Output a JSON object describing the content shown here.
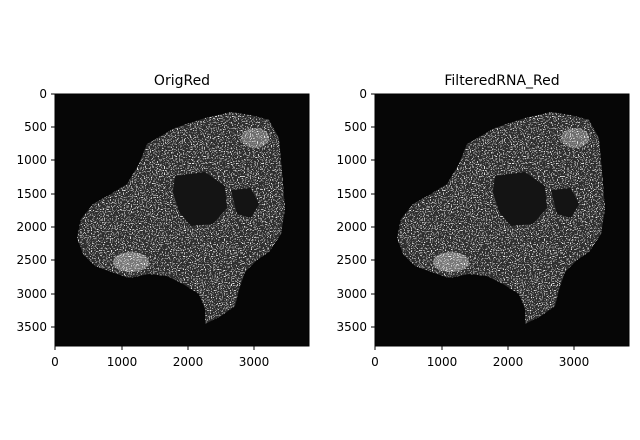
{
  "figure": {
    "panels": [
      {
        "title": "OrigRed",
        "x_ticks": [
          "0",
          "1000",
          "2000",
          "3000"
        ],
        "y_ticks": [
          "0",
          "500",
          "1000",
          "1500",
          "2000",
          "2500",
          "3000",
          "3500"
        ]
      },
      {
        "title": "FilteredRNA_Red",
        "x_ticks": [
          "0",
          "1000",
          "2000",
          "3000"
        ],
        "y_ticks": [
          "0",
          "500",
          "1000",
          "1500",
          "2000",
          "2500",
          "3000",
          "3500"
        ]
      }
    ],
    "colors": {
      "background": "#000000",
      "tissue": "#3a3a3a",
      "speckle": "#ffffff"
    }
  }
}
